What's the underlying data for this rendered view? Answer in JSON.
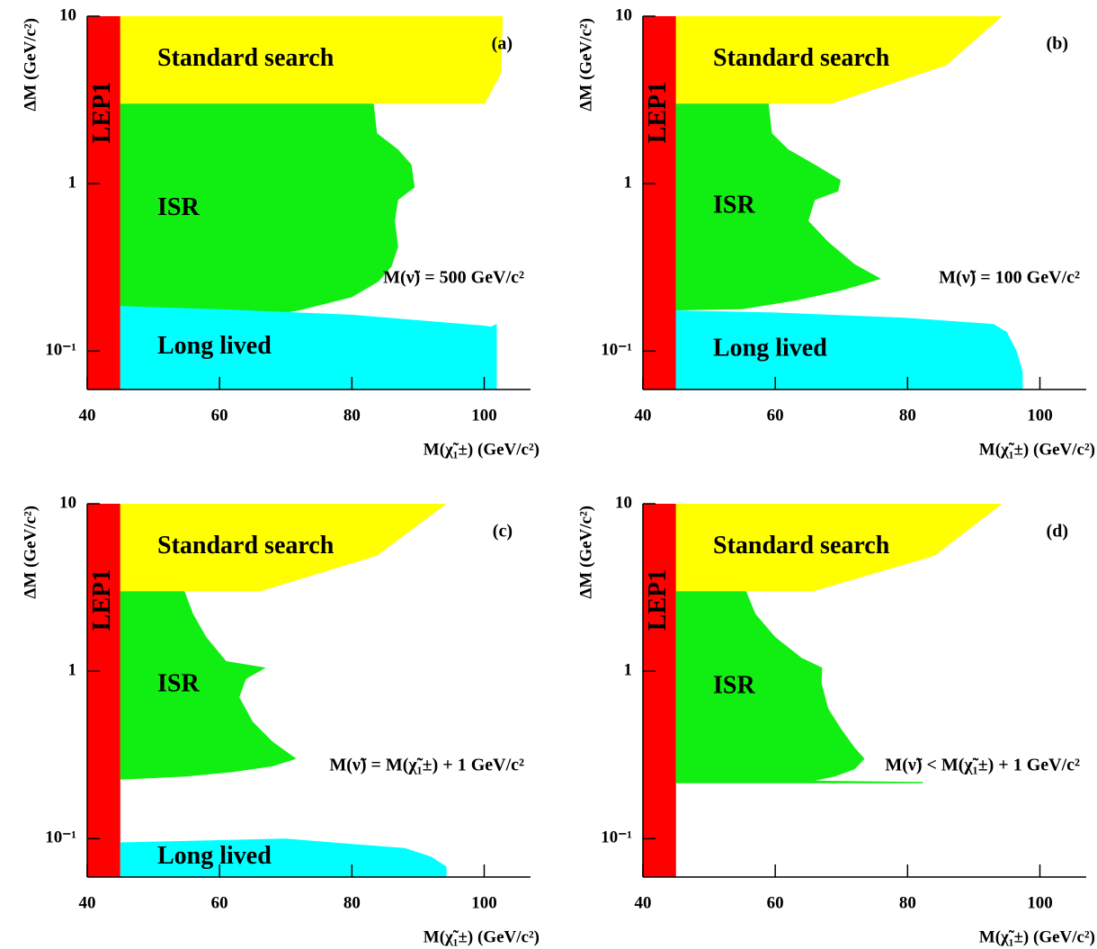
{
  "chart_data": [
    {
      "type": "area",
      "panel_label": "(a)",
      "annotation": "M(ν̃) = 500 GeV/c²",
      "x_label": "M(χ̃₁±) (GeV/c²)",
      "y_label": "ΔM (GeV/c²)",
      "xlim": [
        40,
        107
      ],
      "ylim": [
        0.059,
        10
      ],
      "log_y": true,
      "xticks": [
        40,
        60,
        80,
        100
      ],
      "yticks": [
        {
          "value": 0.1,
          "label": "10⁻¹"
        },
        1,
        10
      ],
      "series": [
        {
          "name": "LEP1",
          "color": "#ff0000",
          "x": [
            40,
            45,
            45,
            40
          ],
          "y": [
            0.059,
            0.059,
            10,
            10
          ]
        },
        {
          "name": "Standard search",
          "color": "#ffff00",
          "x": [
            45,
            102.8,
            102.6,
            100.1,
            45
          ],
          "y": [
            10,
            10,
            4.6,
            3,
            3
          ]
        },
        {
          "name": "ISR",
          "color": "#11ee11",
          "x": [
            45,
            83.3,
            83.8,
            87,
            89,
            89.5,
            87,
            86.5,
            87,
            86,
            84,
            80,
            72,
            68,
            45
          ],
          "y": [
            3,
            3,
            2,
            1.6,
            1.3,
            0.95,
            0.8,
            0.6,
            0.42,
            0.32,
            0.26,
            0.21,
            0.175,
            0.165,
            0.186
          ]
        },
        {
          "name": "Long lived",
          "color": "#00ffff",
          "x": [
            45,
            60,
            80,
            100,
            101,
            101.9,
            101.9,
            45
          ],
          "y": [
            0.186,
            0.178,
            0.165,
            0.142,
            0.14,
            0.145,
            0.059,
            0.059
          ]
        }
      ]
    },
    {
      "type": "area",
      "panel_label": "(b)",
      "annotation": "M(ν̃) = 100 GeV/c²",
      "x_label": "M(χ̃₁±) (GeV/c²)",
      "y_label": "ΔM (GeV/c²)",
      "xlim": [
        40,
        107
      ],
      "ylim": [
        0.059,
        10
      ],
      "log_y": true,
      "xticks": [
        40,
        60,
        80,
        100
      ],
      "yticks": [
        {
          "value": 0.1,
          "label": "10⁻¹"
        },
        1,
        10
      ],
      "series": [
        {
          "name": "LEP1",
          "color": "#ff0000",
          "x": [
            40,
            45,
            45,
            40
          ],
          "y": [
            0.059,
            0.059,
            10,
            10
          ]
        },
        {
          "name": "Standard search",
          "color": "#ffff00",
          "x": [
            45,
            94.3,
            85.9,
            68.5,
            45
          ],
          "y": [
            10,
            10,
            5.1,
            3,
            3
          ]
        },
        {
          "name": "ISR",
          "color": "#11ee11",
          "x": [
            45,
            59,
            59.5,
            62,
            66,
            69.9,
            69.5,
            66,
            65,
            68,
            72,
            76,
            70,
            63,
            55,
            45
          ],
          "y": [
            3,
            3,
            2,
            1.6,
            1.3,
            1.05,
            0.9,
            0.8,
            0.6,
            0.45,
            0.33,
            0.27,
            0.23,
            0.2,
            0.178,
            0.175
          ]
        },
        {
          "name": "Long lived",
          "color": "#00ffff",
          "x": [
            45,
            60,
            80,
            93,
            95,
            96.5,
            97.4,
            97.4,
            45
          ],
          "y": [
            0.175,
            0.17,
            0.158,
            0.145,
            0.13,
            0.1,
            0.075,
            0.059,
            0.059
          ]
        }
      ]
    },
    {
      "type": "area",
      "panel_label": "(c)",
      "annotation": "M(ν̃) = M(χ̃₁±) + 1 GeV/c²",
      "x_label": "M(χ̃₁±) (GeV/c²)",
      "y_label": "ΔM (GeV/c²)",
      "xlim": [
        40,
        107
      ],
      "ylim": [
        0.059,
        10
      ],
      "log_y": true,
      "xticks": [
        40,
        60,
        80,
        100
      ],
      "yticks": [
        {
          "value": 0.1,
          "label": "10⁻¹"
        },
        1,
        10
      ],
      "series": [
        {
          "name": "LEP1",
          "color": "#ff0000",
          "x": [
            40,
            45,
            45,
            40
          ],
          "y": [
            0.059,
            0.059,
            10,
            10
          ]
        },
        {
          "name": "Standard search",
          "color": "#ffff00",
          "x": [
            45,
            94.3,
            83.8,
            66.2,
            45
          ],
          "y": [
            10,
            10,
            4.9,
            3,
            3
          ]
        },
        {
          "name": "ISR",
          "color": "#11ee11",
          "x": [
            45,
            54.7,
            56,
            58,
            61,
            67,
            64,
            63,
            65,
            68,
            71.6,
            68,
            62,
            55,
            45
          ],
          "y": [
            3,
            3,
            2.2,
            1.6,
            1.15,
            1.05,
            0.9,
            0.7,
            0.5,
            0.38,
            0.3,
            0.27,
            0.25,
            0.235,
            0.225
          ]
        },
        {
          "name": "Long lived",
          "color": "#00ffff",
          "x": [
            45,
            60,
            70,
            80,
            88,
            92,
            94.3,
            94.3,
            45
          ],
          "y": [
            0.095,
            0.098,
            0.1,
            0.093,
            0.088,
            0.078,
            0.068,
            0.059,
            0.059
          ]
        }
      ]
    },
    {
      "type": "area",
      "panel_label": "(d)",
      "annotation": "M(ν̃) < M(χ̃₁±) + 1 GeV/c²",
      "x_label": "M(χ̃₁±) (GeV/c²)",
      "y_label": "ΔM (GeV/c²)",
      "xlim": [
        40,
        107
      ],
      "ylim": [
        0.059,
        10
      ],
      "log_y": true,
      "xticks": [
        40,
        60,
        80,
        100
      ],
      "yticks": [
        {
          "value": 0.1,
          "label": "10⁻¹"
        },
        1,
        10
      ],
      "series": [
        {
          "name": "LEP1",
          "color": "#ff0000",
          "x": [
            40,
            45,
            45,
            40
          ],
          "y": [
            0.059,
            0.059,
            10,
            10
          ]
        },
        {
          "name": "Standard search",
          "color": "#ffff00",
          "x": [
            45,
            94.3,
            84.1,
            65.8,
            45
          ],
          "y": [
            10,
            10,
            4.9,
            3,
            3
          ]
        },
        {
          "name": "ISR",
          "color": "#11ee11",
          "x": [
            45,
            55.6,
            57,
            60,
            64,
            67.1,
            67,
            68,
            70,
            72,
            73.5,
            72,
            69,
            66,
            82.3,
            82.3,
            45
          ],
          "y": [
            3,
            3,
            2.2,
            1.6,
            1.2,
            1.05,
            0.85,
            0.6,
            0.45,
            0.35,
            0.3,
            0.26,
            0.235,
            0.222,
            0.218,
            0.214,
            0.214
          ]
        }
      ]
    }
  ]
}
